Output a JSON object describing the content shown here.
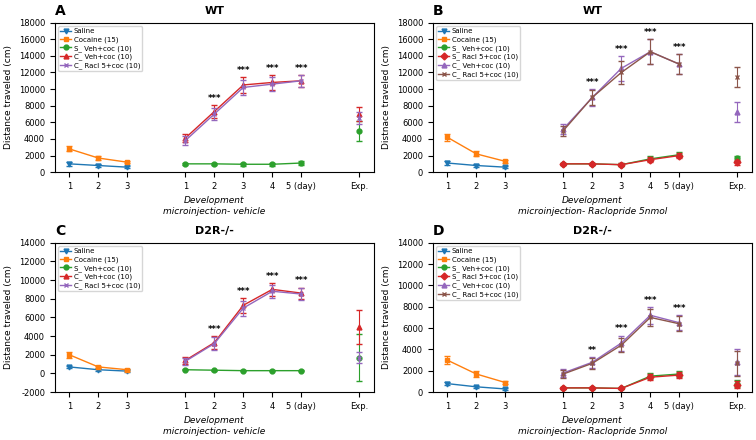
{
  "chart_data": [
    {
      "type": "line",
      "title": "WT",
      "y_label": "Distance traveled (cm)",
      "x_label": "Development\nmicroinjection- vehicle",
      "annotations": [
        {
          "text": "A"
        },
        {
          "text": "***",
          "x": 5,
          "series": "C_ Veh+coc (10)"
        },
        {
          "text": "***",
          "x": 6,
          "series": "C_ Veh+coc (10)"
        },
        {
          "text": "***",
          "x": 7,
          "series": "C_ Veh+coc (10)"
        },
        {
          "text": "***",
          "x": 8,
          "series": "C_ Veh+coc (10)"
        }
      ],
      "categories": [
        "1",
        "2",
        "3",
        null,
        "1",
        "2",
        "3",
        "4",
        "5 (day)",
        null,
        "Exp."
      ],
      "ylim": [
        0,
        18000
      ],
      "yticks": [
        0,
        2000,
        4000,
        6000,
        8000,
        10000,
        12000,
        14000,
        16000,
        18000
      ],
      "legend": "upper left",
      "series": [
        {
          "name": "Saline",
          "marker": "triangle_down",
          "values": [
            1000,
            800,
            600,
            null,
            null,
            null,
            null,
            null,
            null,
            null,
            null
          ],
          "errors": [
            200,
            150,
            100,
            null,
            null,
            null,
            null,
            null,
            null,
            null,
            null
          ]
        },
        {
          "name": "Cocaine (15)",
          "marker": "square",
          "values": [
            2800,
            1700,
            1200,
            null,
            null,
            null,
            null,
            null,
            null,
            null,
            null
          ],
          "errors": [
            300,
            200,
            150,
            null,
            null,
            null,
            null,
            null,
            null,
            null,
            null
          ]
        },
        {
          "name": "S_ Veh+coc (10)",
          "marker": "circle",
          "values": [
            null,
            null,
            null,
            null,
            1000,
            1000,
            950,
            950,
            1100,
            null,
            5000
          ],
          "errors": [
            null,
            null,
            null,
            null,
            150,
            150,
            150,
            150,
            200,
            null,
            1200
          ]
        },
        {
          "name": "C_ Veh+coc (10)",
          "marker": "triangle_up",
          "values": [
            null,
            null,
            null,
            null,
            4100,
            7300,
            10500,
            10800,
            11000,
            null,
            7000
          ],
          "errors": [
            null,
            null,
            null,
            null,
            500,
            800,
            1000,
            900,
            700,
            null,
            800
          ]
        },
        {
          "name": "C_ Racl 5+coc (10)",
          "marker": "x",
          "values": [
            null,
            null,
            null,
            null,
            3800,
            7000,
            10200,
            10600,
            11000,
            null,
            6500
          ],
          "errors": [
            null,
            null,
            null,
            null,
            500,
            700,
            900,
            800,
            700,
            null,
            700
          ]
        }
      ]
    },
    {
      "type": "line",
      "title": "WT",
      "y_label": "Distnace traveled (cm)",
      "x_label": "Development\nmicroinjection- Raclopride 5nmol",
      "annotations": [
        {
          "text": "B"
        },
        {
          "text": "***",
          "x": 5,
          "series": "C_ Veh+coc (10)"
        },
        {
          "text": "***",
          "x": 6,
          "series": "C_ Veh+coc (10)"
        },
        {
          "text": "***",
          "x": 7,
          "series": "C_ Veh+coc (10)"
        },
        {
          "text": "***",
          "x": 8,
          "series": "C_ Veh+coc (10)"
        }
      ],
      "categories": [
        "1",
        "2",
        "3",
        null,
        "1",
        "2",
        "3",
        "4",
        "5 (day)",
        null,
        "Exp."
      ],
      "ylim": [
        0,
        18000
      ],
      "yticks": [
        0,
        2000,
        4000,
        6000,
        8000,
        10000,
        12000,
        14000,
        16000,
        18000
      ],
      "legend": "upper left",
      "series": [
        {
          "name": "Saline",
          "marker": "triangle_down",
          "values": [
            1100,
            800,
            600,
            null,
            null,
            null,
            null,
            null,
            null,
            null,
            null
          ],
          "errors": [
            200,
            150,
            100,
            null,
            null,
            null,
            null,
            null,
            null,
            null,
            null
          ]
        },
        {
          "name": "Cocaine (15)",
          "marker": "square",
          "values": [
            4200,
            2200,
            1300,
            null,
            null,
            null,
            null,
            null,
            null,
            null,
            null
          ],
          "errors": [
            400,
            300,
            200,
            null,
            null,
            null,
            null,
            null,
            null,
            null,
            null
          ]
        },
        {
          "name": "S_ Veh+coc (10)",
          "marker": "circle",
          "values": [
            null,
            null,
            null,
            null,
            1000,
            1000,
            900,
            1600,
            2100,
            null,
            1700
          ],
          "errors": [
            null,
            null,
            null,
            null,
            150,
            150,
            150,
            300,
            300,
            null,
            300
          ]
        },
        {
          "name": "S_ Racl 5+coc (10)",
          "marker": "diamond",
          "values": [
            null,
            null,
            null,
            null,
            1000,
            1000,
            900,
            1500,
            2000,
            null,
            1200
          ],
          "errors": [
            null,
            null,
            null,
            null,
            150,
            150,
            150,
            300,
            300,
            null,
            300
          ]
        },
        {
          "name": "C_ Veh+coc (10)",
          "marker": "triangle_up",
          "values": [
            null,
            null,
            null,
            null,
            5200,
            9000,
            12500,
            14500,
            13000,
            null,
            7200
          ],
          "errors": [
            null,
            null,
            null,
            null,
            600,
            1000,
            1500,
            1500,
            1200,
            null,
            1200
          ]
        },
        {
          "name": "C_ Racl 5+coc (10)",
          "marker": "x",
          "values": [
            null,
            null,
            null,
            null,
            5000,
            9000,
            12000,
            14500,
            13000,
            null,
            11500
          ],
          "errors": [
            null,
            null,
            null,
            null,
            600,
            900,
            1400,
            1500,
            1200,
            null,
            1200
          ]
        }
      ]
    },
    {
      "type": "line",
      "title": "D2R-/-",
      "y_label": "Distance traveled (cm)",
      "x_label": "Development\nmicroinjection- vehicle",
      "annotations": [
        {
          "text": "C"
        },
        {
          "text": "***",
          "x": 5,
          "series": "C_ Veh+coc (10)"
        },
        {
          "text": "***",
          "x": 6,
          "series": "C_ Veh+coc (10)"
        },
        {
          "text": "***",
          "x": 7,
          "series": "C_ Veh+coc (10)"
        },
        {
          "text": "***",
          "x": 8,
          "series": "C_ Veh+coc (10)"
        }
      ],
      "categories": [
        "1",
        "2",
        "3",
        null,
        "1",
        "2",
        "3",
        "4",
        "5 (day)",
        null,
        "Exp."
      ],
      "ylim": [
        -2000,
        14000
      ],
      "yticks": [
        -2000,
        0,
        2000,
        4000,
        6000,
        8000,
        10000,
        12000,
        14000
      ],
      "legend": "upper left",
      "series": [
        {
          "name": "Saline",
          "marker": "triangle_down",
          "values": [
            700,
            400,
            250,
            null,
            null,
            null,
            null,
            null,
            null,
            null,
            null
          ],
          "errors": [
            150,
            100,
            80,
            null,
            null,
            null,
            null,
            null,
            null,
            null,
            null
          ]
        },
        {
          "name": "Cocaine (15)",
          "marker": "square",
          "values": [
            2000,
            700,
            400,
            null,
            null,
            null,
            null,
            null,
            null,
            null,
            null
          ],
          "errors": [
            300,
            150,
            100,
            null,
            null,
            null,
            null,
            null,
            null,
            null,
            null
          ]
        },
        {
          "name": "S_ Veh+coc (10)",
          "marker": "circle",
          "values": [
            null,
            null,
            null,
            null,
            400,
            350,
            300,
            300,
            300,
            null,
            1700
          ],
          "errors": [
            null,
            null,
            null,
            null,
            80,
            70,
            60,
            60,
            60,
            null,
            2500
          ]
        },
        {
          "name": "C_ Veh+coc (10)",
          "marker": "triangle_up",
          "values": [
            null,
            null,
            null,
            null,
            1400,
            3300,
            7300,
            9000,
            8600,
            null,
            5000
          ],
          "errors": [
            null,
            null,
            null,
            null,
            400,
            700,
            800,
            700,
            600,
            null,
            1800
          ]
        },
        {
          "name": "C_ Racl 5+coc (10)",
          "marker": "x",
          "values": [
            null,
            null,
            null,
            null,
            1300,
            3200,
            7000,
            8800,
            8500,
            null,
            1700
          ],
          "errors": [
            null,
            null,
            null,
            null,
            350,
            650,
            800,
            700,
            600,
            null,
            600
          ]
        }
      ]
    },
    {
      "type": "line",
      "title": "D2R-/-",
      "y_label": "Distance traveled (cm)",
      "x_label": "Development\nmicroinjection- Raclopride 5nmol",
      "annotations": [
        {
          "text": "D"
        },
        {
          "text": "**",
          "x": 5,
          "series": "C_ Veh+coc (10)"
        },
        {
          "text": "***",
          "x": 6,
          "series": "C_ Veh+coc (10)"
        },
        {
          "text": "***",
          "x": 7,
          "series": "C_ Veh+coc (10)"
        },
        {
          "text": "***",
          "x": 8,
          "series": "C_ Veh+coc (10)"
        }
      ],
      "categories": [
        "1",
        "2",
        "3",
        null,
        "1",
        "2",
        "3",
        "4",
        "5 (day)",
        null,
        "Exp."
      ],
      "ylim": [
        0,
        14000
      ],
      "yticks": [
        0,
        2000,
        4000,
        6000,
        8000,
        10000,
        12000,
        14000
      ],
      "legend": "upper left",
      "series": [
        {
          "name": "Saline",
          "marker": "triangle_down",
          "values": [
            800,
            500,
            300,
            null,
            null,
            null,
            null,
            null,
            null,
            null,
            null
          ],
          "errors": [
            150,
            100,
            80,
            null,
            null,
            null,
            null,
            null,
            null,
            null,
            null
          ]
        },
        {
          "name": "Cocaine (15)",
          "marker": "square",
          "values": [
            3000,
            1700,
            900,
            null,
            null,
            null,
            null,
            null,
            null,
            null,
            null
          ],
          "errors": [
            400,
            250,
            150,
            null,
            null,
            null,
            null,
            null,
            null,
            null,
            null
          ]
        },
        {
          "name": "S_ Veh+coc (10)",
          "marker": "circle",
          "values": [
            null,
            null,
            null,
            null,
            400,
            400,
            350,
            1500,
            1700,
            null,
            800
          ],
          "errors": [
            null,
            null,
            null,
            null,
            80,
            80,
            70,
            300,
            300,
            null,
            300
          ]
        },
        {
          "name": "S_ Racl 5+coc (10)",
          "marker": "diamond",
          "values": [
            null,
            null,
            null,
            null,
            400,
            400,
            350,
            1400,
            1600,
            null,
            700
          ],
          "errors": [
            null,
            null,
            null,
            null,
            80,
            80,
            70,
            300,
            300,
            null,
            300
          ]
        },
        {
          "name": "C_ Veh+coc (10)",
          "marker": "triangle_up",
          "values": [
            null,
            null,
            null,
            null,
            1800,
            2800,
            4600,
            7200,
            6500,
            null,
            2800
          ],
          "errors": [
            null,
            null,
            null,
            null,
            400,
            500,
            700,
            800,
            700,
            null,
            1200
          ]
        },
        {
          "name": "C_ Racl 5+coc (10)",
          "marker": "x",
          "values": [
            null,
            null,
            null,
            null,
            1700,
            2700,
            4400,
            7000,
            6400,
            null,
            2700
          ],
          "errors": [
            null,
            null,
            null,
            null,
            400,
            500,
            650,
            800,
            700,
            null,
            1200
          ]
        }
      ]
    }
  ]
}
